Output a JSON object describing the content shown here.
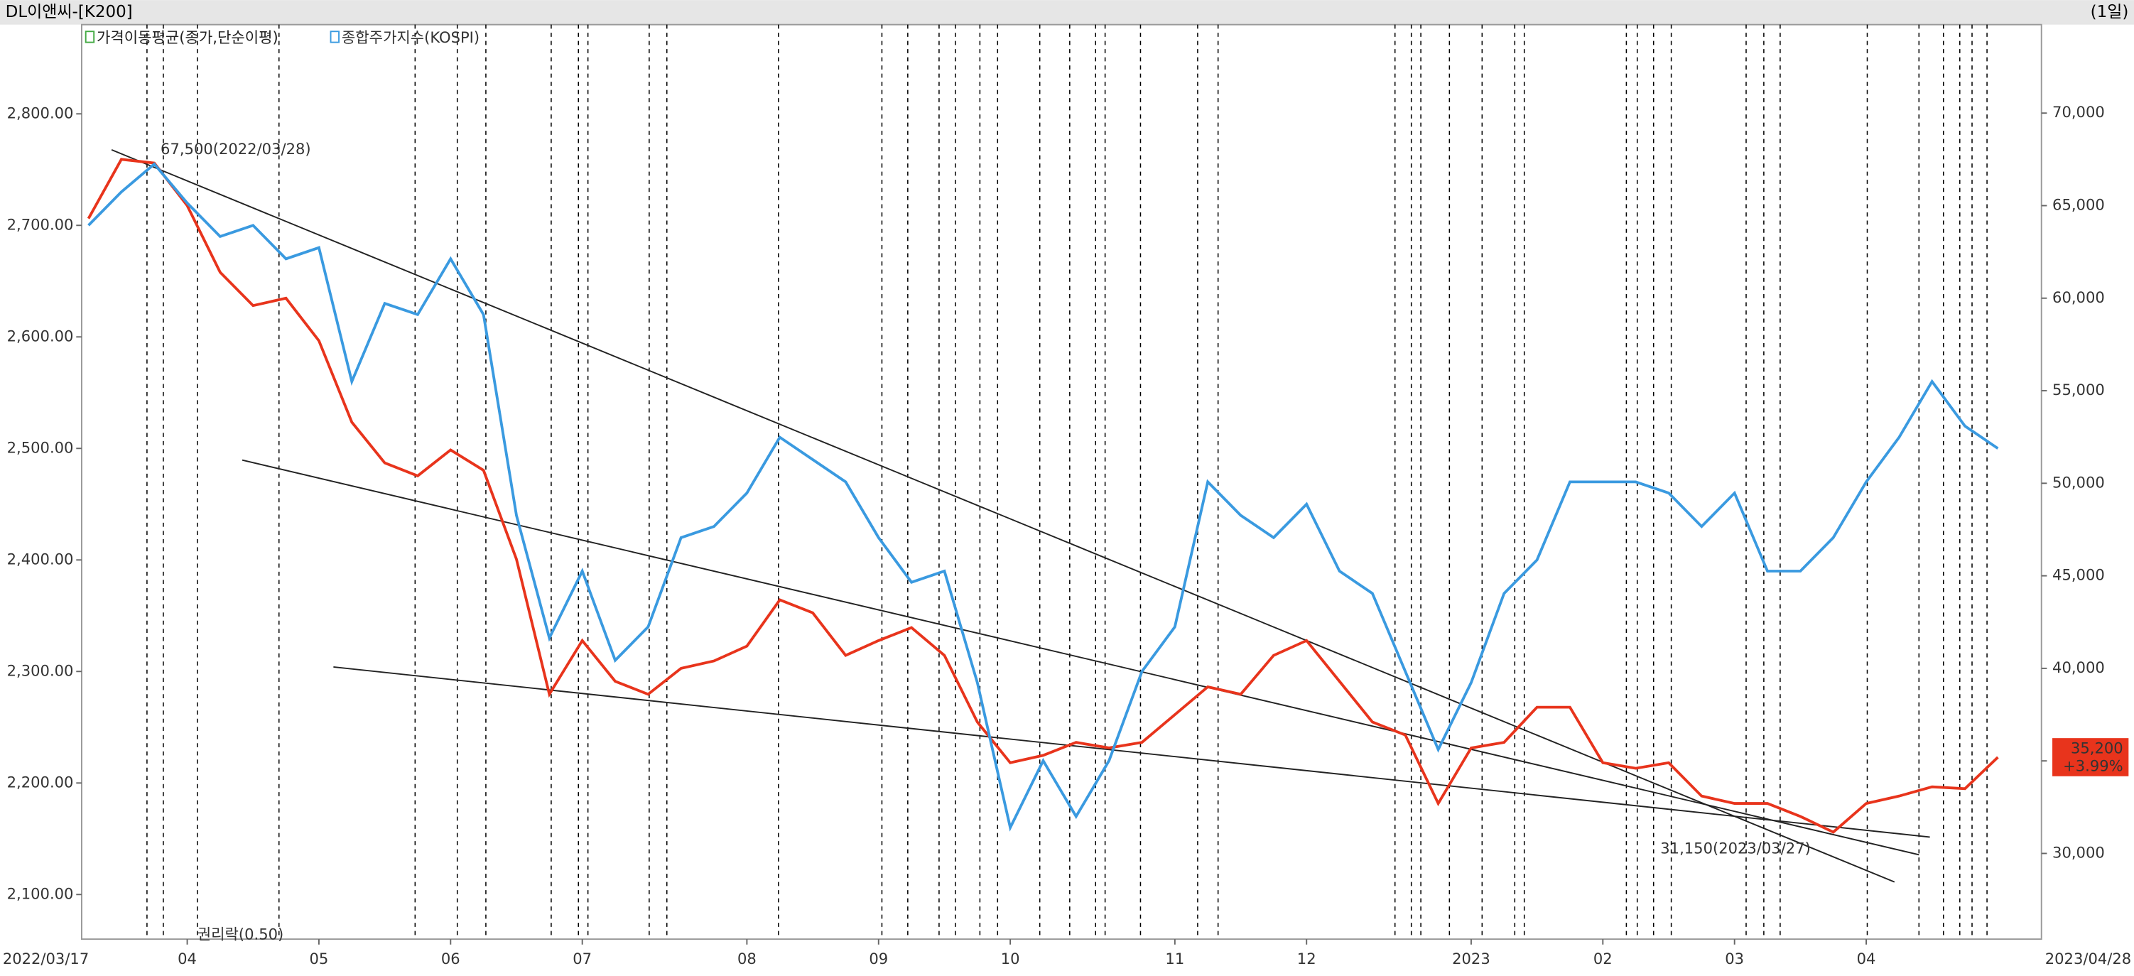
{
  "chart_data": {
    "type": "line",
    "title": "DL이앤씨-[K200]",
    "period": "(1일)",
    "indicator_label": "가격이동평균(종가,단순이평)",
    "categories": [
      "2022/03/17",
      null,
      null,
      "04",
      null,
      null,
      null,
      "05",
      null,
      null,
      null,
      "06",
      null,
      null,
      null,
      "07",
      null,
      null,
      null,
      null,
      "08",
      null,
      null,
      null,
      "09",
      null,
      null,
      null,
      "10",
      null,
      null,
      null,
      null,
      "11",
      null,
      null,
      null,
      "12",
      null,
      null,
      null,
      null,
      "2023",
      null,
      null,
      null,
      "02",
      null,
      null,
      null,
      "03",
      null,
      null,
      null,
      "04",
      null,
      null,
      null,
      "2023/04/28"
    ],
    "series": [
      {
        "color": "#e8341c",
        "axis": "y2",
        "values": [
          64300,
          67500,
          67300,
          65000,
          61400,
          59600,
          60000,
          57700,
          53300,
          51100,
          50400,
          51800,
          50700,
          45900,
          38600,
          41500,
          39300,
          38600,
          40000,
          40400,
          41200,
          43700,
          43000,
          40700,
          41500,
          42200,
          40700,
          37100,
          34900,
          35300,
          36000,
          35700,
          36000,
          37500,
          39000,
          38600,
          40700,
          41500,
          39300,
          37100,
          36400,
          32700,
          35700,
          36000,
          37900,
          37900,
          34900,
          34600,
          34900,
          33100,
          32700,
          32700,
          32000,
          31150,
          32700,
          33100,
          33600,
          33500,
          35200
        ]
      },
      {
        "name": "종합주가지수(KOSPI)",
        "color": "#3a9ae0",
        "values": [
          2700,
          2730,
          2755,
          2720,
          2690,
          2700,
          2670,
          2680,
          2560,
          2630,
          2620,
          2670,
          2620,
          2440,
          2330,
          2390,
          2310,
          2340,
          2420,
          2430,
          2460,
          2510,
          2490,
          2470,
          2420,
          2380,
          2390,
          2290,
          2160,
          2220,
          2170,
          2220,
          2300,
          2340,
          2470,
          2440,
          2420,
          2450,
          2390,
          2370,
          2300,
          2230,
          2290,
          2370,
          2400,
          2470,
          2470,
          2470,
          2460,
          2430,
          2460,
          2390,
          2390,
          2420,
          2470,
          2510,
          2560,
          2520,
          2500
        ]
      }
    ],
    "ylim": [
      2060,
      2880
    ],
    "yticks": [
      {
        "value": 2100,
        "label": "2,100.00"
      },
      {
        "value": 2200,
        "label": "2,200.00"
      },
      {
        "value": 2300,
        "label": "2,300.00"
      },
      {
        "value": 2400,
        "label": "2,400.00"
      },
      {
        "value": 2500,
        "label": "2,500.00"
      },
      {
        "value": 2600,
        "label": "2,600.00"
      },
      {
        "value": 2700,
        "label": "2,700.00"
      },
      {
        "value": 2800,
        "label": "2,800.00"
      }
    ],
    "y2lim": [
      25370,
      74780
    ],
    "y2ticks": [
      {
        "value": 30000,
        "label": "30,000"
      },
      {
        "value": 35000,
        "label": "35,000"
      },
      {
        "value": 40000,
        "label": "40,000"
      },
      {
        "value": 45000,
        "label": "45,000"
      },
      {
        "value": 50000,
        "label": "50,000"
      },
      {
        "value": 55000,
        "label": "55,000"
      },
      {
        "value": 60000,
        "label": "60,000"
      },
      {
        "value": 65000,
        "label": "65,000"
      },
      {
        "value": 70000,
        "label": "70,000"
      }
    ],
    "annotations": [
      {
        "text": "67,500(2022/03/28)",
        "index": 1
      },
      {
        "text": "31,150(2023/03/27)",
        "index": 53
      },
      {
        "text": "권리락(0.50)",
        "index": 3
      }
    ],
    "last_price_label": "35,200",
    "last_change_label": "+3.99%"
  }
}
